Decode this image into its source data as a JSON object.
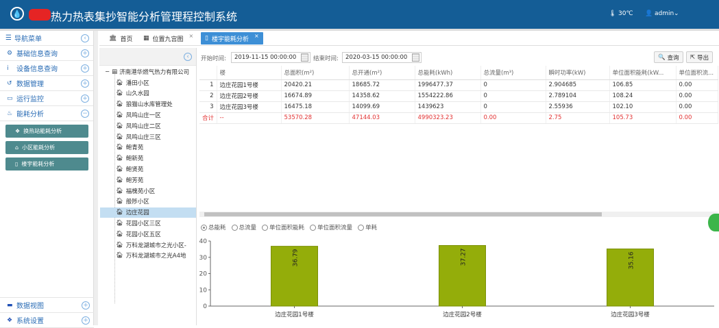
{
  "header": {
    "title": "热力热表集抄智能分析管理程控制系统",
    "temperature": "30℃",
    "user": "admin",
    "brand_color": "#145d96"
  },
  "sidebar": {
    "title": "导航菜单",
    "items": [
      {
        "label": "基础信息查询",
        "icon": "cogs-icon",
        "state": "+"
      },
      {
        "label": "设备信息查询",
        "icon": "info-icon",
        "state": "+"
      },
      {
        "label": "数据管理",
        "icon": "history-icon",
        "state": "+"
      },
      {
        "label": "运行监控",
        "icon": "laptop-icon",
        "state": "+"
      },
      {
        "label": "能耗分析",
        "icon": "fire-icon",
        "state": "−"
      }
    ],
    "subitems": [
      {
        "label": "换热站能耗分析",
        "icon": "cubes-icon"
      },
      {
        "label": "小区能耗分析",
        "icon": "home-icon"
      },
      {
        "label": "楼宇能耗分析",
        "icon": "building-icon"
      }
    ],
    "bottom_items": [
      {
        "label": "数据视图",
        "icon": "paypal-icon",
        "state": "+"
      },
      {
        "label": "系统设置",
        "icon": "cubes-icon",
        "state": "+"
      }
    ]
  },
  "tabs": [
    {
      "label": "首页",
      "icon": "bank-icon"
    },
    {
      "label": "位置九宫图",
      "icon": "grid-icon",
      "close": "×"
    },
    {
      "label": "楼宇能耗分析",
      "icon": "building-icon",
      "close": "×",
      "active": true
    }
  ],
  "tree": {
    "root": "济南港华燃气热力有限公司",
    "nodes": [
      "潘田小区",
      "山久水园",
      "狼猫山水库管理处",
      "凤鸣山庄一区",
      "凤鸣山庄二区",
      "凤鸣山庄三区",
      "鲍青苑",
      "鲍新苑",
      "鲍贤苑",
      "鲍芳苑",
      "福槐苑小区",
      "般陟小区",
      "边庄花园",
      "花园小区三区",
      "花园小区五区",
      "万科龙湖城市之光小区-",
      "万科龙湖城市之光A4地"
    ],
    "selected": "边庄花园"
  },
  "filters": {
    "start_label": "开始时间:",
    "start_value": "2019-11-15 00:00:00",
    "end_label": "结束时间:",
    "end_value": "2020-03-15 00:00:00",
    "query_label": "查询",
    "export_label": "导出"
  },
  "table": {
    "columns": [
      "",
      "楼",
      "总面积(m²)",
      "总开通(m²)",
      "总能耗(kWh)",
      "总流量(m³)",
      "瞬时功率(kW)",
      "单位面积能耗(kW...",
      "单位面积流..."
    ],
    "rows": [
      [
        "1",
        "边庄花园1号楼",
        "20420.21",
        "18685.72",
        "1996477.37",
        "0",
        "2.904685",
        "106.85",
        "0.00"
      ],
      [
        "2",
        "边庄花园2号楼",
        "16674.89",
        "14358.62",
        "1554222.86",
        "0",
        "2.789104",
        "108.24",
        "0.00"
      ],
      [
        "3",
        "边庄花园3号楼",
        "16475.18",
        "14099.69",
        "1439623",
        "0",
        "2.55936",
        "102.10",
        "0.00"
      ]
    ],
    "total": [
      "合计",
      "--",
      "53570.28",
      "47144.03",
      "4990323.23",
      "0.00",
      "2.75",
      "105.73",
      "0.00"
    ]
  },
  "radios": {
    "options": [
      "总能耗",
      "总流量",
      "单位面积能耗",
      "单位面积流量",
      "单耗"
    ],
    "selected": "总能耗"
  },
  "chart_data": {
    "type": "bar",
    "categories": [
      "边庄花园1号楼",
      "边庄花园2号楼",
      "边庄花园3号楼"
    ],
    "values": [
      36.79,
      37.27,
      35.16
    ],
    "ylim": [
      0,
      40
    ],
    "yticks": [
      0,
      10,
      20,
      30,
      40
    ],
    "labels": [
      "36.79",
      "37.27",
      "35.16"
    ],
    "bar_color": "#94ad0a",
    "grid": false
  }
}
